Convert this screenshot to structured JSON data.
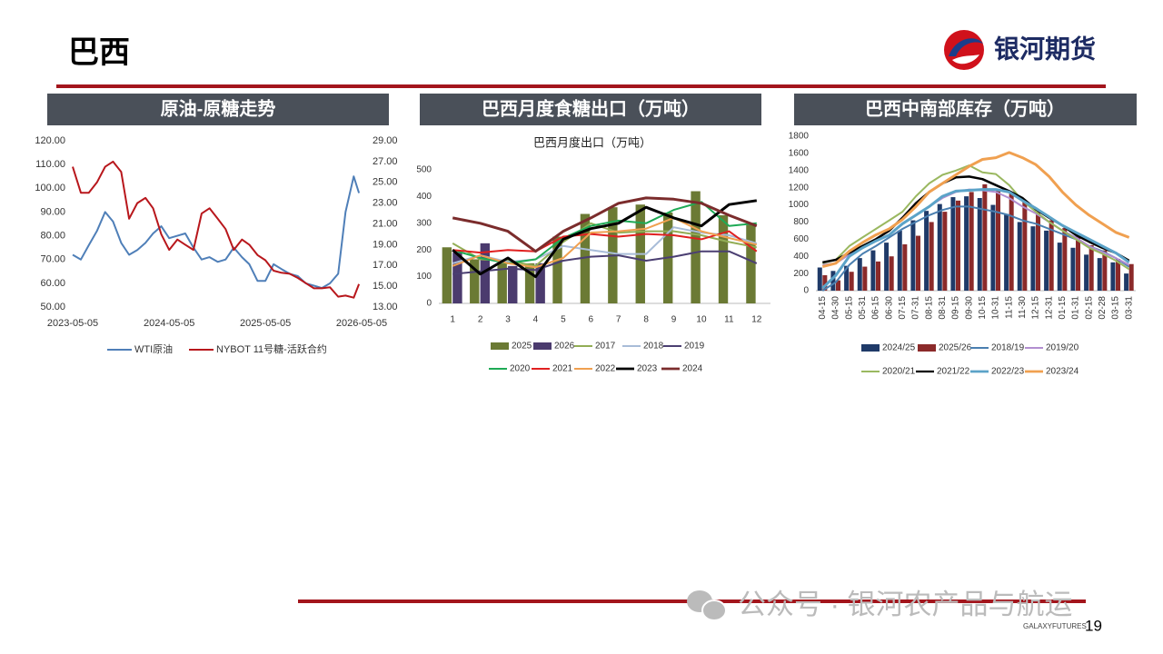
{
  "header": {
    "title": "巴西",
    "logo_text": "银河期货"
  },
  "chart_data": [
    {
      "type": "line",
      "title": "原油-原糖走势",
      "x": [
        "2023-05-05",
        "2023-06-05",
        "2023-07-05",
        "2023-08-05",
        "2023-09-05",
        "2023-10-05",
        "2023-11-05",
        "2023-12-05",
        "2024-01-05",
        "2024-02-05",
        "2024-03-05",
        "2024-04-05",
        "2024-05-05",
        "2024-06-05",
        "2024-07-05",
        "2024-08-05",
        "2024-09-05",
        "2024-10-05",
        "2024-11-05",
        "2024-12-05",
        "2025-01-05",
        "2025-02-05",
        "2025-03-05",
        "2025-04-05",
        "2025-05-05",
        "2025-06-05",
        "2025-07-05",
        "2025-08-05",
        "2025-09-05",
        "2025-10-05",
        "2025-11-05",
        "2025-12-05",
        "2026-01-05",
        "2026-02-05",
        "2026-03-05",
        "2026-04-05",
        "2026-04-25"
      ],
      "series": [
        {
          "name": "WTI原油",
          "color": "#4f7fb8",
          "values": [
            72,
            70,
            76,
            82,
            90,
            86,
            77,
            72,
            74,
            77,
            81,
            84,
            79,
            80,
            81,
            75,
            70,
            71,
            69,
            70,
            75,
            71,
            68,
            61,
            61,
            68,
            66,
            64,
            63,
            60,
            59,
            58,
            60,
            64,
            90,
            105,
            98
          ]
        },
        {
          "name": "NYBOT 11号糖-活跃合约",
          "color": "#b8171c",
          "axis": "y2",
          "values": [
            26.5,
            24,
            24,
            25,
            26.5,
            27,
            26,
            21.5,
            23,
            23.5,
            22.5,
            20,
            18.5,
            19.5,
            19,
            18.5,
            22,
            22.5,
            21.5,
            20.5,
            18.5,
            19.5,
            19,
            18,
            17.5,
            16.5,
            16.3,
            16.2,
            15.8,
            15.3,
            14.8,
            14.8,
            14.9,
            14,
            14.1,
            13.9,
            15.2
          ]
        }
      ],
      "xlim": [
        "2023-05-05",
        "2026-05-05"
      ],
      "xticks": [
        "2023-05-05",
        "2024-05-05",
        "2025-05-05",
        "2026-05-05"
      ],
      "ylim": [
        50,
        120
      ],
      "yticks": [
        {
          "value": 50,
          "label": "50.00"
        },
        {
          "value": 60,
          "label": "60.00"
        },
        {
          "value": 70,
          "label": "70.00"
        },
        {
          "value": 80,
          "label": "80.00"
        },
        {
          "value": 90,
          "label": "90.00"
        },
        {
          "value": 100,
          "label": "100.00"
        },
        {
          "value": 110,
          "label": "110.00"
        },
        {
          "value": 120,
          "label": "120.00"
        }
      ],
      "y2lim": [
        13,
        29
      ],
      "y2ticks": [
        {
          "value": 13,
          "label": "13.00"
        },
        {
          "value": 15,
          "label": "15.00"
        },
        {
          "value": 17,
          "label": "17.00"
        },
        {
          "value": 19,
          "label": "19.00"
        },
        {
          "value": 21,
          "label": "21.00"
        },
        {
          "value": 23,
          "label": "23.00"
        },
        {
          "value": 25,
          "label": "25.00"
        },
        {
          "value": 27,
          "label": "27.00"
        },
        {
          "value": 29,
          "label": "29.00"
        }
      ],
      "grid": false
    },
    {
      "type": "combo",
      "title": "巴西月度食糖出口（万吨）",
      "subtitle": "巴西月度出口（万吨）",
      "categories": [
        "1",
        "2",
        "3",
        "4",
        "5",
        "6",
        "7",
        "8",
        "9",
        "10",
        "11",
        "12"
      ],
      "series": [
        {
          "name": "2025",
          "type": "bar",
          "color": "#6b7a34",
          "values": [
            210,
            165,
            150,
            150,
            250,
            335,
            360,
            370,
            340,
            420,
            330,
            300
          ]
        },
        {
          "name": "2026",
          "type": "bar",
          "color": "#4b3b6e",
          "values": [
            190,
            225,
            140,
            150,
            null,
            null,
            null,
            null,
            null,
            null,
            null,
            null
          ]
        },
        {
          "name": "2017",
          "type": "line",
          "color": "#92ad55",
          "values": [
            225,
            165,
            160,
            140,
            230,
            300,
            265,
            270,
            270,
            255,
            230,
            210
          ]
        },
        {
          "name": "2018",
          "type": "line",
          "color": "#a8bcd8",
          "values": [
            150,
            180,
            155,
            165,
            215,
            200,
            185,
            185,
            285,
            265,
            255,
            225
          ]
        },
        {
          "name": "2019",
          "type": "line",
          "color": "#4b3f72",
          "values": [
            110,
            120,
            130,
            125,
            160,
            175,
            180,
            160,
            175,
            195,
            195,
            150
          ]
        },
        {
          "name": "2020",
          "type": "line",
          "color": "#1eaa55",
          "values": [
            200,
            170,
            150,
            165,
            245,
            290,
            310,
            300,
            350,
            380,
            290,
            300
          ]
        },
        {
          "name": "2021",
          "type": "line",
          "color": "#e02020",
          "values": [
            200,
            190,
            200,
            195,
            250,
            260,
            250,
            260,
            255,
            240,
            270,
            195
          ]
        },
        {
          "name": "2022",
          "type": "line",
          "color": "#f0a050",
          "values": [
            140,
            180,
            150,
            135,
            170,
            265,
            270,
            280,
            320,
            270,
            245,
            220
          ]
        },
        {
          "name": "2023",
          "type": "line",
          "color": "#000000",
          "linewidth": 3,
          "values": [
            200,
            110,
            170,
            100,
            240,
            280,
            300,
            360,
            320,
            290,
            370,
            385
          ]
        },
        {
          "name": "2024",
          "type": "line",
          "color": "#7b2c2c",
          "linewidth": 3,
          "values": [
            320,
            300,
            270,
            195,
            270,
            320,
            375,
            395,
            390,
            375,
            330,
            290
          ]
        }
      ],
      "ylim": [
        0,
        500
      ],
      "yticks": [
        0,
        100,
        200,
        300,
        400,
        500
      ],
      "grid": false
    },
    {
      "type": "combo",
      "title": "巴西中南部库存（万吨）",
      "categories": [
        "04-15",
        "04-30",
        "05-15",
        "05-31",
        "06-15",
        "06-30",
        "07-15",
        "07-31",
        "08-15",
        "08-31",
        "09-15",
        "09-30",
        "10-15",
        "10-31",
        "11-15",
        "11-30",
        "12-15",
        "12-31",
        "01-15",
        "01-31",
        "02-15",
        "02-28",
        "03-15",
        "03-31"
      ],
      "series": [
        {
          "name": "2024/25",
          "type": "bar",
          "color": "#1f3a68",
          "values": [
            270,
            230,
            290,
            380,
            470,
            560,
            700,
            820,
            930,
            1010,
            1090,
            1100,
            1080,
            1000,
            890,
            800,
            750,
            700,
            560,
            500,
            420,
            380,
            330,
            200
          ]
        },
        {
          "name": "2025/26",
          "type": "bar",
          "color": "#8b2a2a",
          "values": [
            180,
            120,
            220,
            280,
            340,
            400,
            540,
            640,
            800,
            920,
            1050,
            1150,
            1240,
            1180,
            1150,
            1050,
            920,
            820,
            730,
            640,
            530,
            470,
            370,
            310
          ]
        },
        {
          "name": "2018/19",
          "type": "line",
          "color": "#4a7fb0",
          "values": [
            0,
            100,
            300,
            430,
            520,
            620,
            720,
            800,
            880,
            940,
            980,
            980,
            950,
            920,
            880,
            820,
            780,
            720,
            660,
            600,
            520,
            460,
            380,
            280
          ]
        },
        {
          "name": "2019/20",
          "type": "line",
          "color": "#b28ed0",
          "values": [
            300,
            320,
            420,
            500,
            580,
            650,
            780,
            880,
            980,
            1080,
            1150,
            1180,
            1170,
            1150,
            1080,
            980,
            900,
            800,
            700,
            620,
            520,
            450,
            380,
            300
          ]
        },
        {
          "name": "2020/21",
          "type": "line",
          "color": "#9ab860",
          "values": [
            320,
            360,
            520,
            620,
            720,
            820,
            920,
            1100,
            1250,
            1350,
            1400,
            1460,
            1380,
            1360,
            1230,
            1050,
            920,
            800,
            700,
            600,
            500,
            430,
            350,
            250
          ]
        },
        {
          "name": "2021/22",
          "type": "line",
          "color": "#000000",
          "linewidth": 2.5,
          "values": [
            330,
            360,
            440,
            520,
            600,
            700,
            850,
            1020,
            1150,
            1250,
            1320,
            1330,
            1300,
            1230,
            1160,
            1080,
            950,
            850,
            760,
            650,
            570,
            500,
            440,
            350
          ]
        },
        {
          "name": "2022/23",
          "type": "line",
          "color": "#5ba3c8",
          "linewidth": 3,
          "values": [
            30,
            180,
            400,
            500,
            580,
            650,
            780,
            880,
            980,
            1100,
            1160,
            1170,
            1180,
            1180,
            1150,
            1050,
            960,
            860,
            760,
            680,
            600,
            520,
            440,
            330
          ]
        },
        {
          "name": "2023/24",
          "type": "line",
          "color": "#f0a050",
          "linewidth": 3,
          "values": [
            280,
            320,
            460,
            560,
            650,
            720,
            830,
            980,
            1150,
            1250,
            1350,
            1450,
            1530,
            1550,
            1610,
            1550,
            1470,
            1330,
            1150,
            1000,
            880,
            780,
            680,
            620
          ]
        }
      ],
      "ylim": [
        0,
        1800
      ],
      "yticks": [
        0,
        200,
        400,
        600,
        800,
        1000,
        1200,
        1400,
        1600,
        1800
      ],
      "grid": false
    }
  ],
  "footer": {
    "watermark": "公众号 · 银河农产品与航运",
    "brand": "GALAXYFUTURES",
    "page": "19"
  }
}
